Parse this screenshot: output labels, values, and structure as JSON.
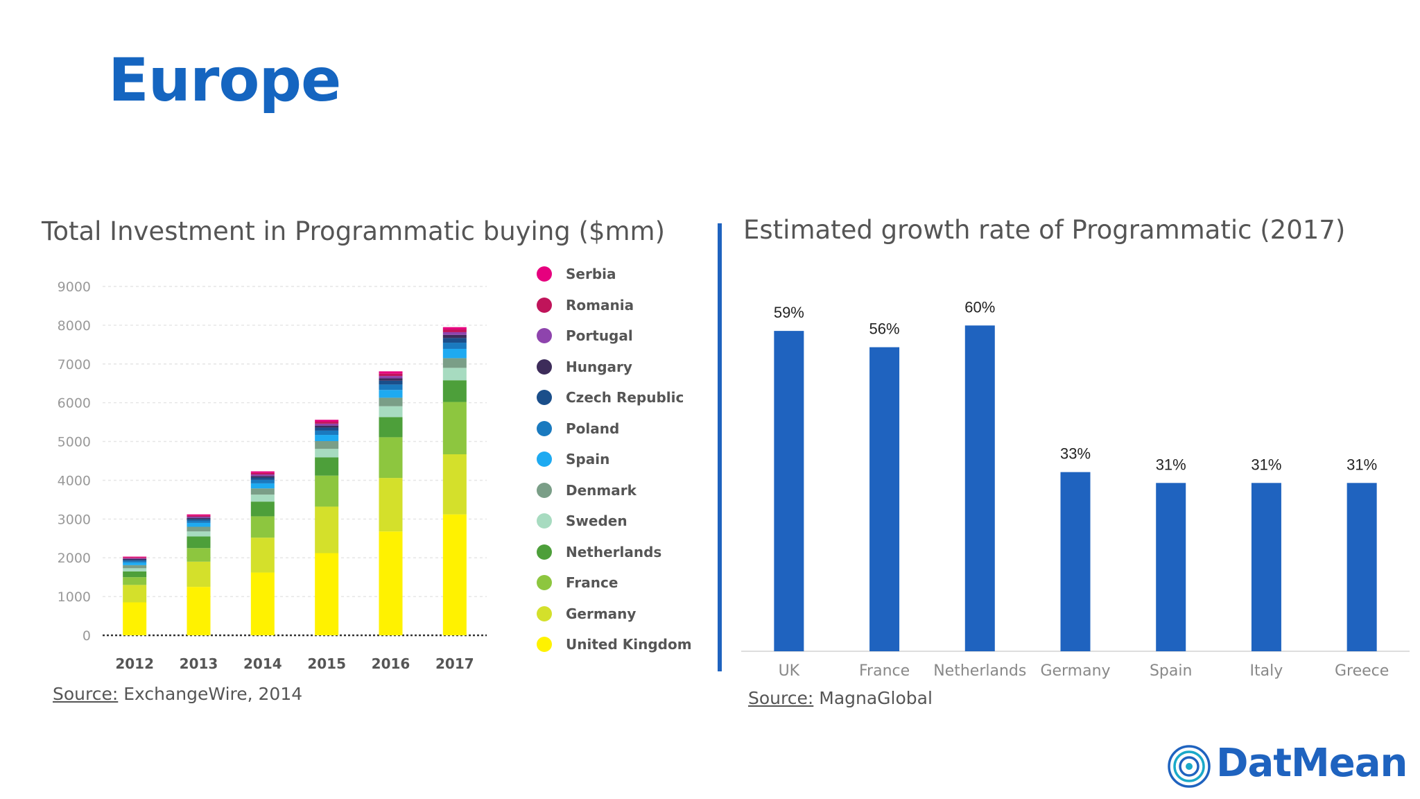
{
  "page": {
    "title": "Europe"
  },
  "colors": {
    "title": "#1565c0",
    "bar": "#1f63bf",
    "divider": "#1f63bf"
  },
  "chart_data": [
    {
      "type": "bar",
      "stacked": true,
      "title": "Total Investment in Programmatic buying ($mm)",
      "categories": [
        "2012",
        "2013",
        "2014",
        "2015",
        "2016",
        "2017"
      ],
      "ylim": [
        0,
        9000
      ],
      "yticks": [
        0,
        1000,
        2000,
        3000,
        4000,
        5000,
        6000,
        7000,
        8000,
        9000
      ],
      "grid": true,
      "legend_position": "right",
      "series": [
        {
          "name": "United Kingdom",
          "color": "#fff200",
          "values": [
            850,
            1250,
            1620,
            2120,
            2680,
            3120
          ]
        },
        {
          "name": "Germany",
          "color": "#d4e02b",
          "values": [
            450,
            650,
            900,
            1200,
            1380,
            1550
          ]
        },
        {
          "name": "France",
          "color": "#8dc63f",
          "values": [
            200,
            350,
            550,
            800,
            1050,
            1350
          ]
        },
        {
          "name": "Netherlands",
          "color": "#4d9f3a",
          "values": [
            150,
            300,
            380,
            470,
            520,
            560
          ]
        },
        {
          "name": "Sweden",
          "color": "#a7dbc0",
          "values": [
            80,
            130,
            180,
            220,
            280,
            320
          ]
        },
        {
          "name": "Denmark",
          "color": "#7a9e87",
          "values": [
            80,
            120,
            160,
            200,
            220,
            250
          ]
        },
        {
          "name": "Spain",
          "color": "#1eaaf1",
          "values": [
            70,
            100,
            130,
            160,
            200,
            240
          ]
        },
        {
          "name": "Poland",
          "color": "#1a7abf",
          "values": [
            40,
            60,
            90,
            110,
            140,
            160
          ]
        },
        {
          "name": "Czech Republic",
          "color": "#1a4e8a",
          "values": [
            30,
            40,
            60,
            80,
            100,
            120
          ]
        },
        {
          "name": "Hungary",
          "color": "#3d2c5a",
          "values": [
            20,
            30,
            40,
            50,
            60,
            80
          ]
        },
        {
          "name": "Portugal",
          "color": "#8e44ad",
          "values": [
            20,
            30,
            40,
            50,
            60,
            70
          ]
        },
        {
          "name": "Romania",
          "color": "#c0145a",
          "values": [
            20,
            30,
            40,
            50,
            60,
            70
          ]
        },
        {
          "name": "Serbia",
          "color": "#e6007e",
          "values": [
            20,
            30,
            40,
            50,
            60,
            60
          ]
        }
      ],
      "legend_order": [
        "Serbia",
        "Romania",
        "Portugal",
        "Hungary",
        "Czech Republic",
        "Poland",
        "Spain",
        "Denmark",
        "Sweden",
        "Netherlands",
        "France",
        "Germany",
        "United Kingdom"
      ],
      "source_label": "Source:",
      "source_text": "ExchangeWire, 2014"
    },
    {
      "type": "bar",
      "title": "Estimated growth rate of Programmatic (2017)",
      "categories": [
        "UK",
        "France",
        "Netherlands",
        "Germany",
        "Spain",
        "Italy",
        "Greece"
      ],
      "values": [
        59,
        56,
        60,
        33,
        31,
        31,
        31
      ],
      "data_labels": [
        "59%",
        "56%",
        "60%",
        "33%",
        "31%",
        "31%",
        "31%"
      ],
      "ylim": [
        0,
        70
      ],
      "source_label": "Source:",
      "source_text": "MagnaGlobal"
    }
  ],
  "logo": {
    "text": "DatMean",
    "icon": "concentric-circles-icon"
  }
}
